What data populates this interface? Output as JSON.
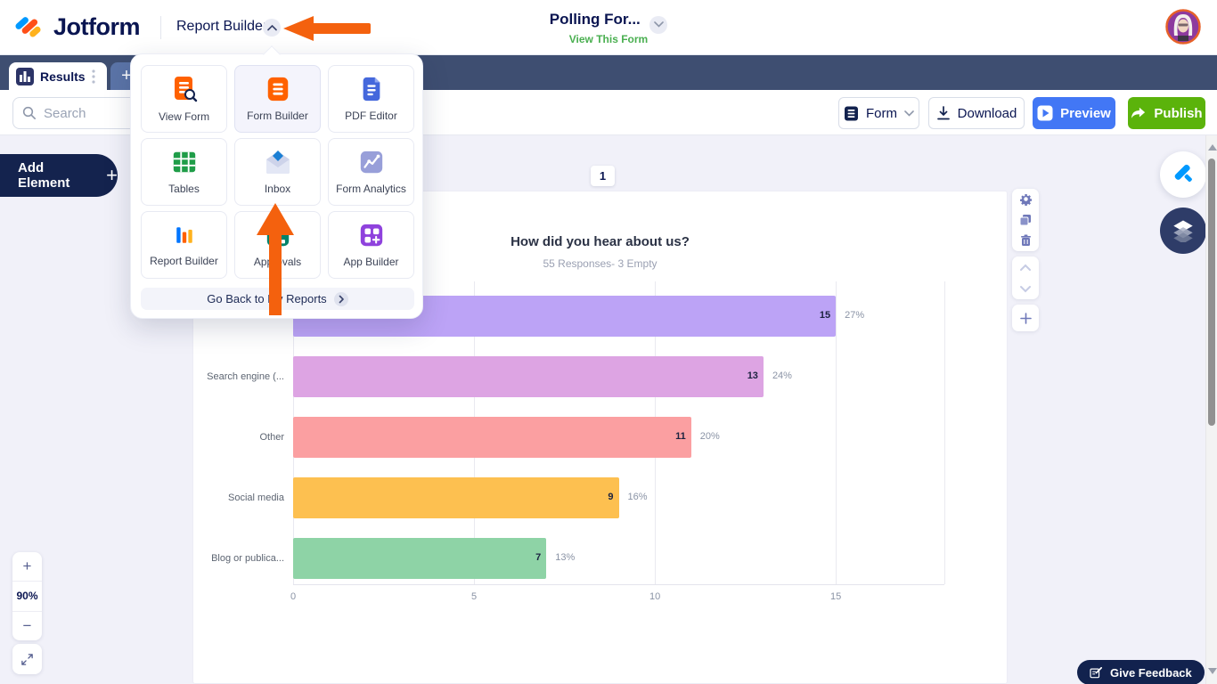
{
  "header": {
    "logo_text": "Jotform",
    "nav_label": "Report Builder",
    "form_title": "Polling For...",
    "view_form_link": "View This Form"
  },
  "tab_bar": {
    "results_tab": "Results",
    "add_tab": "+"
  },
  "toolbar": {
    "search_placeholder": "Search",
    "form_button": "Form",
    "download_button": "Download",
    "preview_button": "Preview",
    "publish_button": "Publish"
  },
  "left_panel": {
    "add_element": "Add Element",
    "add_element_plus": "+"
  },
  "app_menu": {
    "items": [
      {
        "label": "View Form",
        "icon": "view-form-icon"
      },
      {
        "label": "Form Builder",
        "icon": "form-builder-icon",
        "highlighted": true
      },
      {
        "label": "PDF Editor",
        "icon": "pdf-editor-icon"
      },
      {
        "label": "Tables",
        "icon": "tables-icon"
      },
      {
        "label": "Inbox",
        "icon": "inbox-icon"
      },
      {
        "label": "Form Analytics",
        "icon": "form-analytics-icon"
      },
      {
        "label": "Report Builder",
        "icon": "report-builder-icon"
      },
      {
        "label": "Approvals",
        "icon": "approvals-icon"
      },
      {
        "label": "App Builder",
        "icon": "app-builder-icon"
      }
    ],
    "footer_label": "Go Back to My Reports"
  },
  "canvas": {
    "page_indicator": "1",
    "zoom_level": "90%"
  },
  "chart_data": {
    "type": "bar",
    "orientation": "horizontal",
    "title": "How did you hear about us?",
    "subtitle": "55 Responses- 3 Empty",
    "categories": [
      "",
      "Search engine (...",
      "Other",
      "Social media",
      "Blog or publica..."
    ],
    "values": [
      15,
      13,
      11,
      9,
      7
    ],
    "percent_labels": [
      "27%",
      "24%",
      "20%",
      "16%",
      "13%"
    ],
    "bar_colors": [
      "#bca3f6",
      "#dda4e3",
      "#fb9fa1",
      "#fdc050",
      "#8ed3a6"
    ],
    "x_ticks": [
      0,
      5,
      10,
      15
    ],
    "xlim": [
      0,
      18
    ],
    "grid": true,
    "legend": false
  },
  "feedback_button": "Give Feedback",
  "colors": {
    "accent_orange": "#f4610e",
    "navy": "#0a1551",
    "tab_bar_bg": "#3e4e71",
    "preview_blue": "#4277f5",
    "publish_green": "#5bb30b",
    "link_green": "#4aaf50",
    "canvas_bg": "#f1f1f9"
  }
}
